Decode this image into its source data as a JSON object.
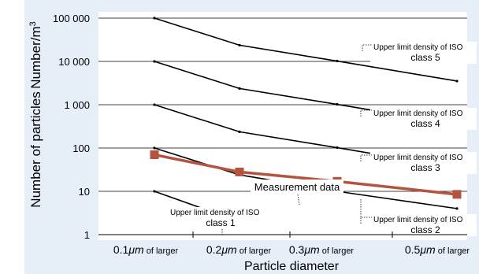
{
  "chart_data": {
    "type": "line",
    "ylabel_left": "Number of particles",
    "ylabel_right": "Number/m",
    "ylabel_right_exp": "3",
    "xlabel": "Particle diameter",
    "y_scale": "log",
    "ylim": [
      1,
      100000
    ],
    "grid": "horizontal",
    "y_ticks": [
      {
        "value": 1,
        "label": "1"
      },
      {
        "value": 10,
        "label": "10"
      },
      {
        "value": 100,
        "label": "100"
      },
      {
        "value": 1000,
        "label": "1 000"
      },
      {
        "value": 10000,
        "label": "10 000"
      },
      {
        "value": 100000,
        "label": "100 000"
      }
    ],
    "categories": [
      {
        "num": "0.1",
        "unit": "μm",
        "suffix": " of larger"
      },
      {
        "num": "0.2",
        "unit": "μm",
        "suffix": " of larger"
      },
      {
        "num": "0.3",
        "unit": "μm",
        "suffix": " of larger"
      },
      {
        "num": "0.5",
        "unit": "μm",
        "suffix": " of larger"
      }
    ],
    "x_positions": [
      0.1,
      0.2,
      0.3,
      0.5
    ],
    "class_limits": [
      {
        "label_lines": [
          "Upper limit density of ISO",
          "class 1"
        ],
        "x": [
          0.1,
          0.2
        ],
        "values": [
          10,
          2
        ]
      },
      {
        "label_lines": [
          "Upper limit density of ISO",
          "class 2"
        ],
        "x": [
          0.1,
          0.2,
          0.3,
          0.5
        ],
        "values": [
          100,
          24,
          10,
          4
        ]
      },
      {
        "label_lines": [
          "Upper limit density of ISO",
          "class 3"
        ],
        "x": [
          0.1,
          0.2,
          0.3,
          0.5
        ],
        "values": [
          1000,
          237,
          102,
          35
        ]
      },
      {
        "label_lines": [
          "Upper limit density of ISO",
          "class 4"
        ],
        "x": [
          0.1,
          0.2,
          0.3,
          0.5
        ],
        "values": [
          10000,
          2370,
          1020,
          352
        ]
      },
      {
        "label_lines": [
          "Upper limit density of ISO",
          "class 5"
        ],
        "x": [
          0.1,
          0.2,
          0.3,
          0.5
        ],
        "values": [
          100000,
          23700,
          10200,
          3520
        ]
      }
    ],
    "series": [
      {
        "name": "Measurement data",
        "x": [
          0.1,
          0.2,
          0.3,
          0.5
        ],
        "values": [
          70,
          28,
          17,
          8.5
        ],
        "color": "#b5533e"
      }
    ],
    "colors": {
      "panel": "#e6eef7",
      "plot": "#ffffff",
      "line": "#000000",
      "grid": "#000000",
      "measurement": "#b5533e"
    }
  }
}
